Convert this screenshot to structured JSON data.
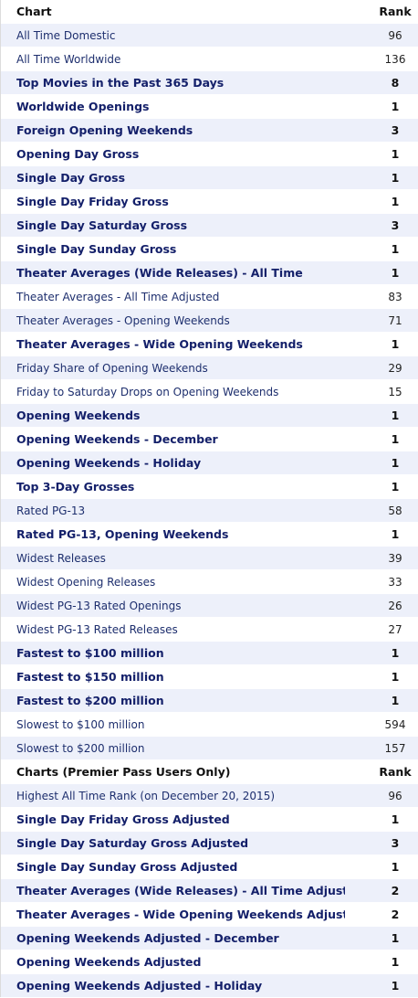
{
  "headers": {
    "chart_label": "Chart",
    "rank_label": "Rank"
  },
  "rows": [
    {
      "chart": "All Time Domestic",
      "rank": "96",
      "bold": false
    },
    {
      "chart": "All Time Worldwide",
      "rank": "136",
      "bold": false
    },
    {
      "chart": "Top Movies in the Past 365 Days",
      "rank": "8",
      "bold": true
    },
    {
      "chart": "Worldwide Openings",
      "rank": "1",
      "bold": true
    },
    {
      "chart": "Foreign Opening Weekends",
      "rank": "3",
      "bold": true
    },
    {
      "chart": "Opening Day Gross",
      "rank": "1",
      "bold": true
    },
    {
      "chart": "Single Day Gross",
      "rank": "1",
      "bold": true
    },
    {
      "chart": "Single Day Friday Gross",
      "rank": "1",
      "bold": true
    },
    {
      "chart": "Single Day Saturday Gross",
      "rank": "3",
      "bold": true
    },
    {
      "chart": "Single Day Sunday Gross",
      "rank": "1",
      "bold": true
    },
    {
      "chart": "Theater Averages (Wide Releases) - All Time",
      "rank": "1",
      "bold": true
    },
    {
      "chart": "Theater Averages - All Time Adjusted",
      "rank": "83",
      "bold": false
    },
    {
      "chart": "Theater Averages - Opening Weekends",
      "rank": "71",
      "bold": false
    },
    {
      "chart": "Theater Averages - Wide Opening Weekends",
      "rank": "1",
      "bold": true
    },
    {
      "chart": "Friday Share of Opening Weekends",
      "rank": "29",
      "bold": false
    },
    {
      "chart": "Friday to Saturday Drops on Opening Weekends",
      "rank": "15",
      "bold": false
    },
    {
      "chart": "Opening Weekends",
      "rank": "1",
      "bold": true
    },
    {
      "chart": "Opening Weekends - December",
      "rank": "1",
      "bold": true
    },
    {
      "chart": "Opening Weekends - Holiday",
      "rank": "1",
      "bold": true
    },
    {
      "chart": "Top 3-Day Grosses",
      "rank": "1",
      "bold": true
    },
    {
      "chart": "Rated PG-13",
      "rank": "58",
      "bold": false
    },
    {
      "chart": "Rated PG-13, Opening Weekends",
      "rank": "1",
      "bold": true
    },
    {
      "chart": "Widest Releases",
      "rank": "39",
      "bold": false
    },
    {
      "chart": "Widest Opening Releases",
      "rank": "33",
      "bold": false
    },
    {
      "chart": "Widest PG-13 Rated Openings",
      "rank": "26",
      "bold": false
    },
    {
      "chart": "Widest PG-13 Rated Releases",
      "rank": "27",
      "bold": false
    },
    {
      "chart": "Fastest to $100 million",
      "rank": "1",
      "bold": true
    },
    {
      "chart": "Fastest to $150 million",
      "rank": "1",
      "bold": true
    },
    {
      "chart": "Fastest to $200 million",
      "rank": "1",
      "bold": true
    },
    {
      "chart": "Slowest to $100 million",
      "rank": "594",
      "bold": false
    },
    {
      "chart": "Slowest to $200 million",
      "rank": "157",
      "bold": false
    }
  ],
  "premier_headers": {
    "chart_label": "Charts (Premier Pass Users Only)",
    "rank_label": "Rank"
  },
  "premier_rows": [
    {
      "chart": "Highest All Time Rank (on December 20, 2015)",
      "rank": "96",
      "bold": false
    },
    {
      "chart": "Single Day Friday Gross Adjusted",
      "rank": "1",
      "bold": true
    },
    {
      "chart": "Single Day Saturday Gross Adjusted",
      "rank": "3",
      "bold": true
    },
    {
      "chart": "Single Day Sunday Gross Adjusted",
      "rank": "1",
      "bold": true
    },
    {
      "chart": "Theater Averages (Wide Releases) - All Time Adjusted",
      "rank": "2",
      "bold": true
    },
    {
      "chart": "Theater Averages - Wide Opening Weekends Adjusted",
      "rank": "2",
      "bold": true
    },
    {
      "chart": "Opening Weekends Adjusted - December",
      "rank": "1",
      "bold": true
    },
    {
      "chart": "Opening Weekends Adjusted",
      "rank": "1",
      "bold": true
    },
    {
      "chart": "Opening Weekends Adjusted - Holiday",
      "rank": "1",
      "bold": true
    }
  ],
  "colors": {
    "shade": "#edf0fa",
    "link": "#14206a"
  }
}
